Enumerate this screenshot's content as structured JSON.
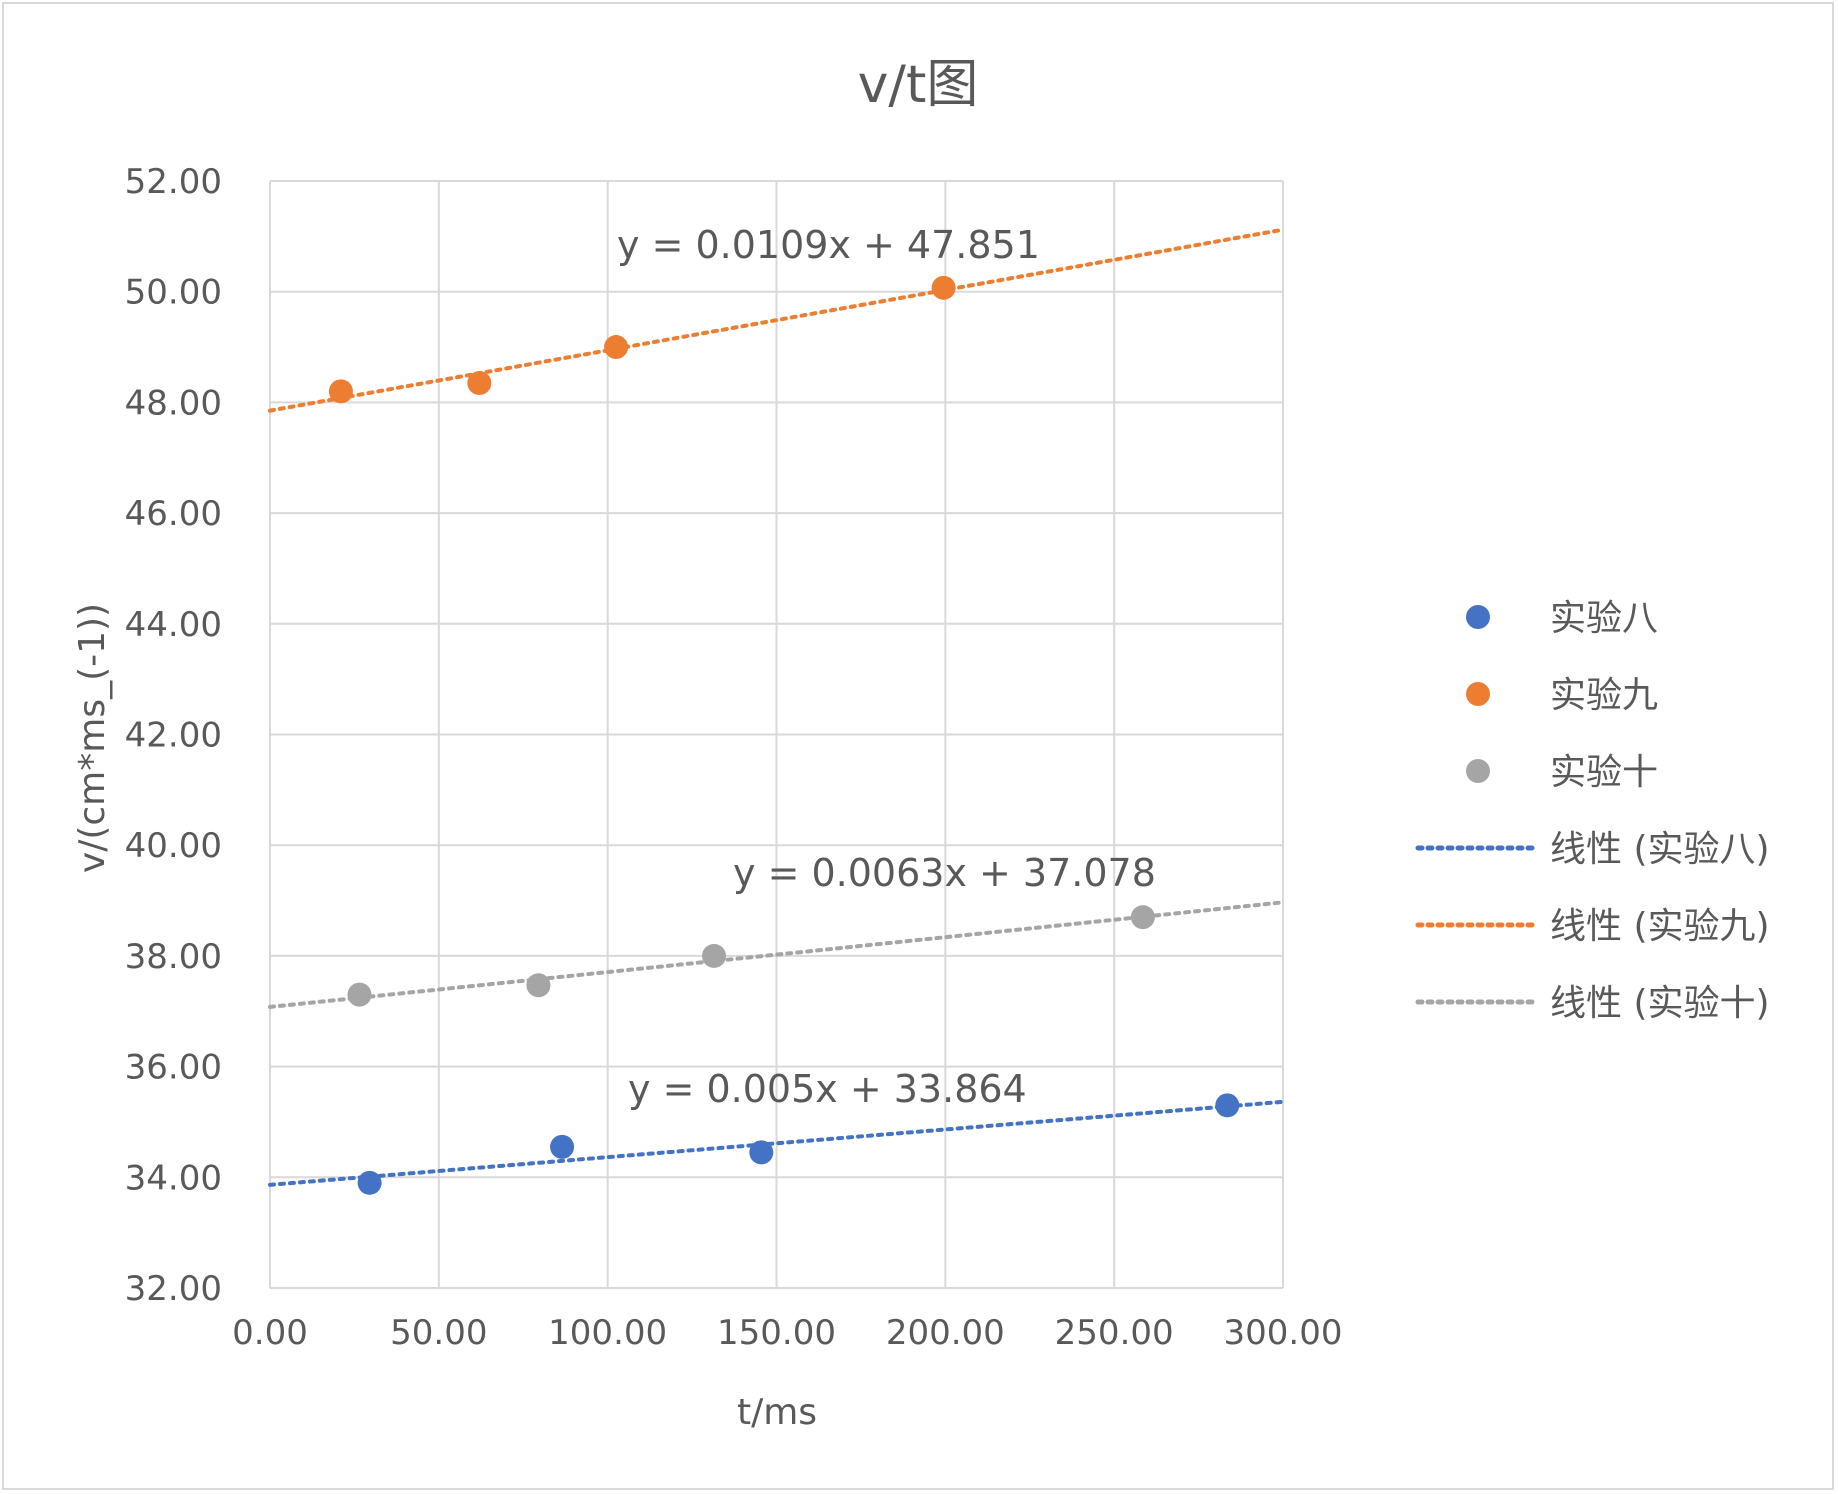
{
  "chart_data": {
    "type": "scatter",
    "title": "v/t图",
    "xlabel": "t/ms",
    "ylabel": "v/(cm*ms_(-1))",
    "xlim": [
      0,
      300
    ],
    "ylim": [
      32,
      52
    ],
    "x_ticks": [
      "0.00",
      "50.00",
      "100.00",
      "150.00",
      "200.00",
      "250.00",
      "300.00"
    ],
    "y_ticks": [
      "32.00",
      "34.00",
      "36.00",
      "38.00",
      "40.00",
      "42.00",
      "44.00",
      "46.00",
      "48.00",
      "50.00",
      "52.00"
    ],
    "grid": true,
    "legend_position": "right",
    "series": [
      {
        "name": "实验八",
        "color": "#4472c4",
        "points": [
          [
            29.5,
            33.9
          ],
          [
            86.5,
            34.55
          ],
          [
            145.5,
            34.45
          ],
          [
            283.5,
            35.3
          ]
        ],
        "trendline": {
          "name": "线性 (实验八)",
          "slope": 0.005,
          "intercept": 33.864,
          "equation": "y = 0.005x + 33.864"
        }
      },
      {
        "name": "实验九",
        "color": "#ed7d31",
        "points": [
          [
            21,
            48.2
          ],
          [
            62,
            48.35
          ],
          [
            102.5,
            49.0
          ],
          [
            199.5,
            50.07
          ]
        ],
        "trendline": {
          "name": "线性 (实验九)",
          "slope": 0.0109,
          "intercept": 47.851,
          "equation": "y = 0.0109x + 47.851"
        }
      },
      {
        "name": "实验十",
        "color": "#a5a5a5",
        "points": [
          [
            26.5,
            37.3
          ],
          [
            79.5,
            37.47
          ],
          [
            131.5,
            38.0
          ],
          [
            258.5,
            38.7
          ]
        ],
        "trendline": {
          "name": "线性 (实验十)",
          "slope": 0.0063,
          "intercept": 37.078,
          "equation": "y = 0.0063x + 37.078"
        }
      }
    ]
  }
}
